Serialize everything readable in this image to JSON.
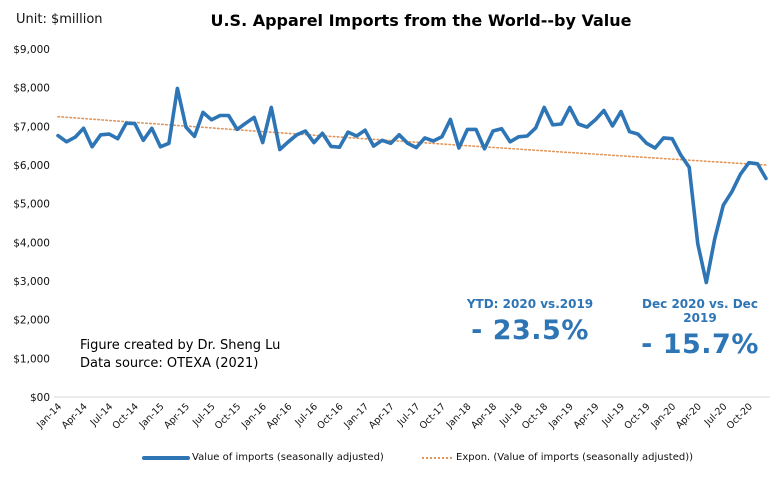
{
  "header": {
    "unit_label": "Unit: $million",
    "title": "U.S. Apparel Imports from the World--by Value"
  },
  "credit": {
    "line1": "Figure created by Dr. Sheng Lu",
    "line2": "Data source: OTEXA (2021)"
  },
  "stats": [
    {
      "label": "YTD: 2020  vs.2019",
      "value": "- 23.5%"
    },
    {
      "label": "Dec 2020 vs. Dec 2019",
      "value": "- 15.7%"
    }
  ],
  "legend": [
    {
      "label": "Value of imports (seasonally adjusted)",
      "style": "solid"
    },
    {
      "label": "Expon. (Value of imports (seasonally adjusted))",
      "style": "dotted"
    }
  ],
  "colors": {
    "series": "#2e75b6",
    "trend": "#e0955a",
    "gridline": "#d9d9d9",
    "stat_text": "#2e75b6"
  },
  "chart_data": {
    "type": "line",
    "title": "U.S. Apparel Imports from the World--by Value",
    "xlabel": "",
    "ylabel": "Unit: $million",
    "ylim": [
      0,
      9000
    ],
    "yticks": [
      0,
      1000,
      2000,
      3000,
      4000,
      5000,
      6000,
      7000,
      8000,
      9000
    ],
    "ytick_labels": [
      "$00",
      "$1,000",
      "$2,000",
      "$3,000",
      "$4,000",
      "$5,000",
      "$6,000",
      "$7,000",
      "$8,000",
      "$9,000"
    ],
    "grid": "bottom-axis-only",
    "legend_position": "bottom",
    "x_tick_labels": [
      "Jan-14",
      "Apr-14",
      "Jul-14",
      "Oct-14",
      "Jan-15",
      "Apr-15",
      "Jul-15",
      "Oct-15",
      "Jan-16",
      "Apr-16",
      "Jul-16",
      "Oct-16",
      "Jan-17",
      "Apr-17",
      "Jul-17",
      "Oct-17",
      "Jan-18",
      "Apr-18",
      "Jul-18",
      "Oct-18",
      "Jan-19",
      "Apr-19",
      "Jul-19",
      "Oct-19",
      "Jan-20",
      "Apr-20",
      "Jul-20",
      "Oct-20"
    ],
    "x_tick_every_months": 3,
    "x_start": "Jan-14",
    "x_end": "Dec-20",
    "series": [
      {
        "name": "Value of imports (seasonally adjusted)",
        "style": "solid",
        "values": [
          6760,
          6600,
          6720,
          6950,
          6470,
          6780,
          6800,
          6680,
          7080,
          7070,
          6640,
          6950,
          6470,
          6560,
          7980,
          6980,
          6740,
          7360,
          7170,
          7280,
          7280,
          6920,
          7080,
          7230,
          6580,
          7490,
          6400,
          6600,
          6780,
          6880,
          6580,
          6820,
          6480,
          6460,
          6850,
          6750,
          6900,
          6490,
          6640,
          6560,
          6780,
          6560,
          6450,
          6700,
          6620,
          6730,
          7180,
          6440,
          6920,
          6920,
          6420,
          6880,
          6940,
          6600,
          6730,
          6750,
          6960,
          7490,
          7040,
          7060,
          7490,
          7060,
          6980,
          7170,
          7410,
          7010,
          7380,
          6860,
          6800,
          6560,
          6440,
          6700,
          6680,
          6260,
          5940,
          3960,
          2960,
          4100,
          4960,
          5310,
          5760,
          6060,
          6030,
          5650
        ]
      },
      {
        "name": "Expon. (Value of imports (seasonally adjusted))",
        "style": "dotted",
        "type": "exponential-trendline",
        "start_value": 7250,
        "end_value": 6000
      }
    ]
  }
}
